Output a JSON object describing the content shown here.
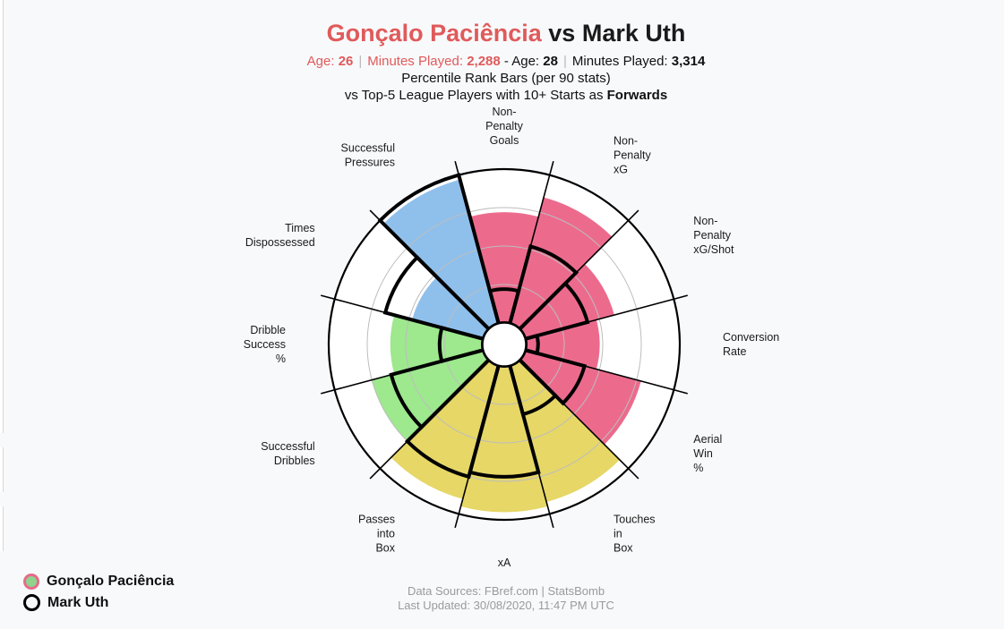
{
  "title": {
    "player1": "Gonçalo Paciência",
    "vs": "vs",
    "player2": "Mark Uth"
  },
  "meta": {
    "p1_age_label": "Age:",
    "p1_age": "26",
    "p1_minutes_label": "Minutes Played:",
    "p1_minutes": "2,288",
    "p2_prefix": "- Age:",
    "p2_age": "28",
    "p2_minutes_label": "Minutes Played:",
    "p2_minutes": "3,314",
    "separator": "|"
  },
  "subtitle_line1": "Percentile Rank Bars (per 90 stats)",
  "subtitle_line2_prefix": "vs Top-5 League Players with 10+ Starts as",
  "subtitle_line2_bold": "Forwards",
  "legend": {
    "player1": "Gonçalo Paciência",
    "player2": "Mark Uth"
  },
  "footer": {
    "line1": "Data Sources: FBref.com | StatsBomb",
    "line2": "Last Updated: 30/08/2020, 11:47 PM UTC"
  },
  "colors": {
    "shooting": "#ec6b8d",
    "passing": "#e6d767",
    "possession": "#9ee88e",
    "defense": "#8fc0ec",
    "player1_title": "#e05a5a"
  },
  "chart_data": {
    "type": "radar-bar",
    "range": [
      0,
      100
    ],
    "metrics": [
      {
        "name": [
          "Non-",
          "Penalty",
          "Goals"
        ],
        "player1": 72,
        "player2": 22,
        "color": "shooting"
      },
      {
        "name": [
          "Non-",
          "Penalty",
          "xG"
        ],
        "player1": 85,
        "player2": 52,
        "color": "shooting"
      },
      {
        "name": [
          "Non-",
          "Penalty",
          "xG/Shot"
        ],
        "player1": 60,
        "player2": 42,
        "color": "shooting"
      },
      {
        "name": [
          "Conversion",
          "Rate"
        ],
        "player1": 48,
        "player2": 8,
        "color": "shooting"
      },
      {
        "name": [
          "Aerial",
          "Win",
          "%"
        ],
        "player1": 78,
        "player2": 40,
        "color": "shooting"
      },
      {
        "name": [
          "Touches",
          "in",
          "Box"
        ],
        "player1": 92,
        "player2": 33,
        "color": "passing"
      },
      {
        "name": [
          "xA"
        ],
        "player1": 95,
        "player2": 72,
        "color": "passing"
      },
      {
        "name": [
          "Passes",
          "into",
          "Box"
        ],
        "player1": 90,
        "player2": 75,
        "color": "passing"
      },
      {
        "name": [
          "Successful",
          "Dribbles"
        ],
        "player1": 75,
        "player2": 62,
        "color": "possession"
      },
      {
        "name": [
          "Dribble",
          "Success",
          "%"
        ],
        "player1": 60,
        "player2": 28,
        "color": "possession"
      },
      {
        "name": [
          "Times",
          "Dispossessed"
        ],
        "player1": 48,
        "player2": 66,
        "color": "defense"
      },
      {
        "name": [
          "Successful",
          "Pressures"
        ],
        "player1": 97,
        "player2": 100,
        "color": "defense"
      }
    ]
  }
}
